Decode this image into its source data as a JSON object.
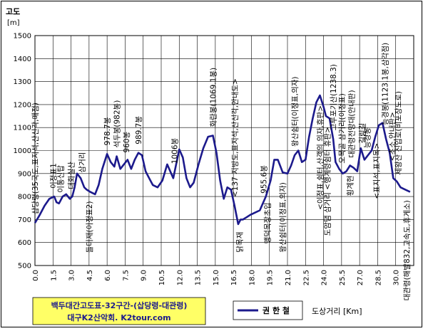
{
  "chart_data": {
    "type": "line",
    "ylabel": "고도",
    "yunit": "[m]",
    "xlabel": "도상거리 [Km]",
    "ylim": [
      500,
      1500
    ],
    "ytick_step": 100,
    "xlim": [
      0,
      31.5
    ],
    "xticks": [
      "0.0",
      "1.5",
      "3.0",
      "4.5",
      "6.0",
      "7.5",
      "9.0",
      "10.5",
      "12.0",
      "13.5",
      "15.0",
      "16.5",
      "18.0",
      "19.5",
      "21.0",
      "22.5",
      "24.0",
      "25.5",
      "27.0",
      "28.5",
      "30.0"
    ],
    "grid": true,
    "legend_position": "bottom-right",
    "series": [
      {
        "name": "권 한 철",
        "color": "#1c1a8c",
        "x": [
          0,
          0.4,
          0.8,
          1.2,
          1.6,
          1.8,
          2.0,
          2.3,
          2.6,
          2.9,
          3.1,
          3.3,
          3.5,
          3.8,
          4.1,
          4.3,
          4.6,
          5.0,
          5.3,
          5.6,
          6.0,
          6.3,
          6.6,
          6.8,
          7.1,
          7.4,
          7.7,
          8.0,
          8.3,
          8.6,
          8.9,
          9.2,
          9.5,
          9.8,
          10.2,
          10.6,
          11.0,
          11.5,
          12.0,
          12.3,
          12.6,
          12.9,
          13.2,
          13.6,
          14.0,
          14.4,
          14.8,
          15.1,
          15.4,
          15.7,
          16.0,
          16.3,
          16.6,
          16.9,
          17.1,
          17.3,
          17.6,
          17.9,
          18.3,
          18.7,
          19.2,
          19.6,
          19.9,
          20.2,
          20.6,
          21.0,
          21.3,
          21.6,
          21.9,
          22.2,
          22.5,
          22.8,
          23.1,
          23.4,
          23.7,
          24.0,
          24.2,
          24.5,
          24.8,
          25.0,
          25.3,
          25.6,
          25.9,
          26.2,
          26.5,
          26.8,
          27.1,
          27.4,
          27.7,
          28.0,
          28.3,
          28.6,
          28.9,
          29.2,
          29.5,
          29.8,
          30.1,
          30.4,
          30.8,
          31.2
        ],
        "y": [
          685,
          720,
          760,
          790,
          800,
          775,
          770,
          800,
          810,
          790,
          800,
          840,
          900,
          880,
          840,
          830,
          820,
          810,
          850,
          920,
          985,
          950,
          930,
          975,
          920,
          940,
          960,
          920,
          960,
          990,
          980,
          910,
          880,
          850,
          840,
          870,
          940,
          880,
          1005,
          970,
          880,
          840,
          860,
          940,
          1010,
          1060,
          1065,
          990,
          870,
          790,
          840,
          830,
          760,
          680,
          700,
          700,
          710,
          720,
          730,
          740,
          800,
          870,
          960,
          960,
          905,
          900,
          935,
          980,
          1000,
          950,
          960,
          1060,
          1140,
          1210,
          1240,
          1190,
          1150,
          1140,
          1050,
          950,
          920,
          900,
          910,
          935,
          925,
          910,
          1010,
          960,
          980,
          1000,
          1060,
          1110,
          1120,
          1050,
          990,
          880,
          865,
          840,
          830,
          820
        ]
      }
    ],
    "annotations": [
      {
        "x": 0.0,
        "text": "삽당령(35국도,표지석,산신각,매점)"
      },
      {
        "x": 1.5,
        "text": "이정표1"
      },
      {
        "x": 2.1,
        "text": "이통신탑"
      },
      {
        "x": 3.0,
        "text": "대화실산"
      },
      {
        "x": 3.9,
        "text": "삼거리"
      },
      {
        "x": 4.5,
        "text": "들미재(이정표2)"
      },
      {
        "x": 6.0,
        "text": "978.7봉"
      },
      {
        "x": 6.8,
        "text": "석두봉(982봉)"
      },
      {
        "x": 7.6,
        "text": "960봉"
      },
      {
        "x": 8.6,
        "text": "989.7봉"
      },
      {
        "x": 11.6,
        "text": "1006봉"
      },
      {
        "x": 14.8,
        "text": "화란봉(1069.1봉)"
      },
      {
        "x": 16.6,
        "text": "<137 지방도,표지석,산신각,안내도>"
      },
      {
        "x": 17.0,
        "text": "닭목재"
      },
      {
        "x": 19.0,
        "text": "955.6봉"
      },
      {
        "x": 19.3,
        "text": "맹덕목장초입"
      },
      {
        "x": 20.6,
        "text": "왕산쉼터(이정표,의자)"
      },
      {
        "x": 21.6,
        "text": "왕산쉼터(이정표,의자)"
      },
      {
        "x": 23.7,
        "text": "<이정표,쉼터,산객의 의자,휴판>"
      },
      {
        "x": 24.3,
        "text": "도암댐 삼거리 <행계령쉼터 휴판>"
      },
      {
        "x": 24.8,
        "text": "고루포기산(1238.3)"
      },
      {
        "x": 25.5,
        "text": "오목골 삼거리(이정표)"
      },
      {
        "x": 26.3,
        "text": "대관령전망대(안내판)"
      },
      {
        "x": 26.2,
        "text": "횡계현"
      },
      {
        "x": 27.2,
        "text": "길림길"
      },
      {
        "x": 27.6,
        "text": "능경봉"
      },
      {
        "x": 28.4,
        "text": "<표지석,표지목>"
      },
      {
        "x": 29.1,
        "text": "능경봉(1123.1봉,삼각점)"
      },
      {
        "x": 29.7,
        "text": "<초소,안내판>"
      },
      {
        "x": 30.2,
        "text": "제왕산 진입로(비포장도로)"
      },
      {
        "x": 30.9,
        "text": "대관령(해발832,고속도,휴게소)"
      }
    ],
    "title": "백두대간고도표-32구간-(삽당령-대관령)",
    "subtitle": "대구K2산악회. K2tour.com"
  }
}
